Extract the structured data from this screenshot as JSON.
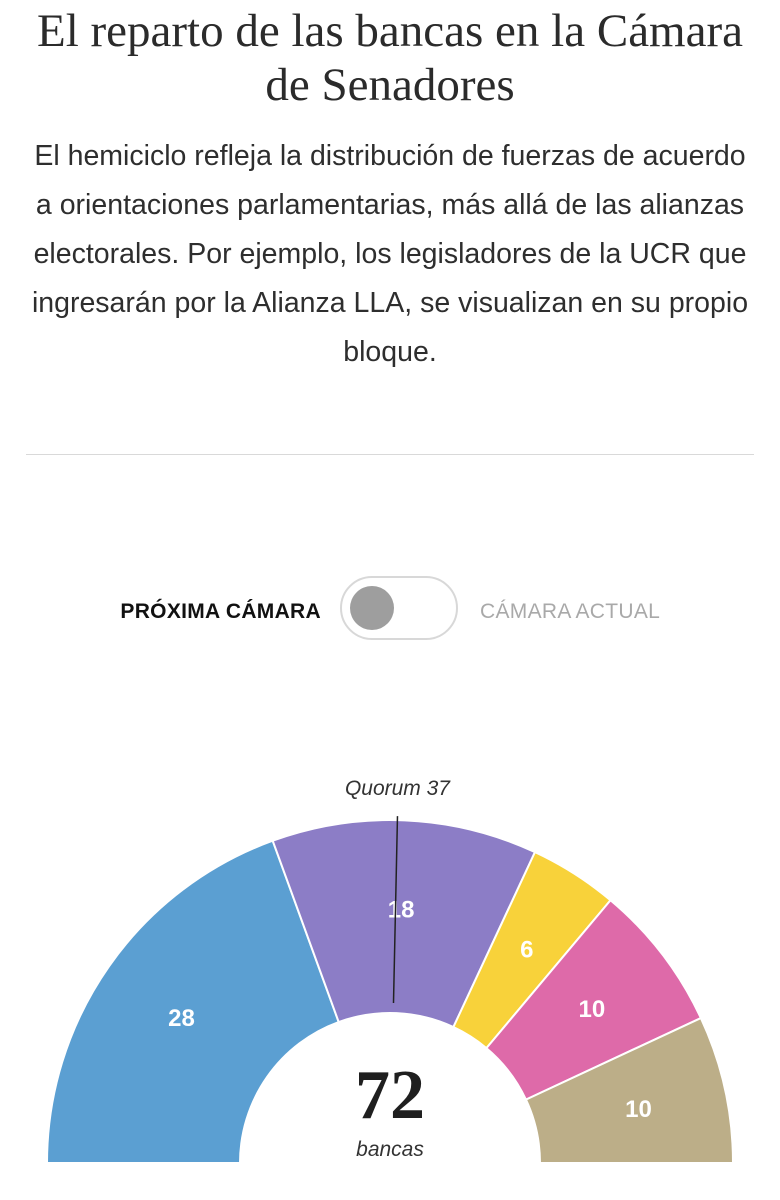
{
  "header": {
    "title": "El reparto de las bancas en la Cámara de Senadores",
    "subtitle": "El hemiciclo refleja la distribución de fuerzas de acuerdo a orientaciones parlamentarias, más allá de las alianzas electorales. Por ejemplo, los legisladores de la UCR que ingresarán por la Alianza LLA, se visualizan en su propio bloque."
  },
  "toggle": {
    "left_label": "PRÓXIMA CÁMARA",
    "right_label": "CÁMARA ACTUAL",
    "selected": "left"
  },
  "chart_data": {
    "type": "pie",
    "shape": "hemicycle",
    "total": 72,
    "total_unit": "bancas",
    "quorum": 37,
    "quorum_label": "Quorum 37",
    "categories": [
      "",
      "",
      "",
      "",
      ""
    ],
    "values": [
      28,
      18,
      6,
      10,
      10
    ],
    "colors": [
      "#5b9fd2",
      "#8c7dc6",
      "#f8d23a",
      "#de6aa9",
      "#bcae88"
    ]
  }
}
